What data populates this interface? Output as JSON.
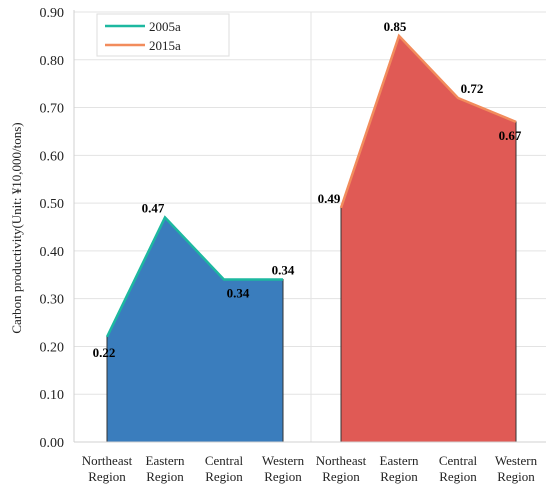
{
  "chart_data": {
    "type": "area",
    "ylabel": "Carbon productivity(Unit: ¥10,000/tons)",
    "ylim": [
      0,
      0.9
    ],
    "yticks": [
      "0.00",
      "0.10",
      "0.20",
      "0.30",
      "0.40",
      "0.50",
      "0.60",
      "0.70",
      "0.80",
      "0.90"
    ],
    "grid": true,
    "legend_position": "top-left",
    "series": [
      {
        "name": "2005a",
        "categories": [
          [
            "Northeast",
            "Region"
          ],
          [
            "Eastern",
            "Region"
          ],
          [
            "Central",
            "Region"
          ],
          [
            "Western",
            "Region"
          ]
        ],
        "values": [
          0.22,
          0.47,
          0.34,
          0.34
        ],
        "labels": [
          "0.22",
          "0.47",
          "0.34",
          "0.34"
        ],
        "fill": "#3a7dbd",
        "line": "#1db8a0"
      },
      {
        "name": "2015a",
        "categories": [
          [
            "Northeast",
            "Region"
          ],
          [
            "Eastern",
            "Region"
          ],
          [
            "Central",
            "Region"
          ],
          [
            "Western",
            "Region"
          ]
        ],
        "values": [
          0.49,
          0.85,
          0.72,
          0.67
        ],
        "labels": [
          "0.49",
          "0.85",
          "0.72",
          "0.67"
        ],
        "fill": "#e05a55",
        "line": "#f28c5c"
      }
    ]
  }
}
